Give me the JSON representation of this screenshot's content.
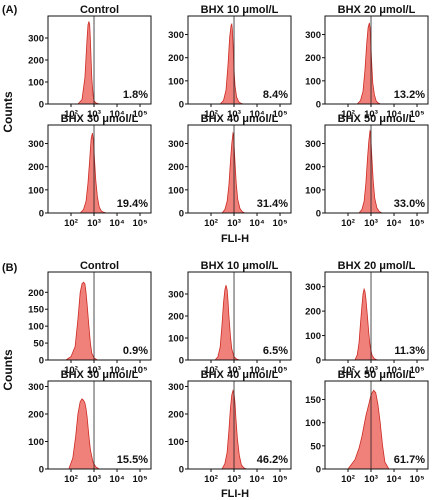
{
  "figure": {
    "label_a": "(A)",
    "label_b": "(B)",
    "ylabel": "Counts",
    "xlabel": "FLI-H",
    "colors": {
      "fill": "#f0807a",
      "stroke": "#cc2a24",
      "axis": "#111111",
      "gate": "#222222"
    }
  },
  "chart_data": [
    {
      "type": "area",
      "group": "A",
      "panel": 1,
      "title": "Control",
      "percent_label": "1.8%",
      "xlabel": "FLI-H",
      "ylabel": "Counts",
      "x_scale": "log",
      "xlim": [
        10,
        300000
      ],
      "ylim": [
        0,
        400
      ],
      "x_ticks": [
        100,
        1000,
        10000,
        100000
      ],
      "x_tick_labels": [
        "10²",
        "10³",
        "10⁴",
        "10⁵"
      ],
      "y_ticks": [
        0,
        100,
        200,
        300
      ],
      "gate": 1000,
      "x": [
        200,
        300,
        400,
        500,
        550,
        600,
        650,
        700,
        750,
        800,
        900,
        1000,
        1200,
        1500,
        2000
      ],
      "values": [
        0,
        20,
        120,
        300,
        360,
        375,
        360,
        290,
        200,
        120,
        45,
        15,
        5,
        2,
        0
      ]
    },
    {
      "type": "area",
      "group": "A",
      "panel": 2,
      "title": "BHX 10 μmol/L",
      "percent_label": "8.4%",
      "xlabel": "FLI-H",
      "ylabel": "Counts",
      "x_scale": "log",
      "xlim": [
        10,
        300000
      ],
      "ylim": [
        0,
        380
      ],
      "x_ticks": [
        100,
        1000,
        10000,
        100000
      ],
      "x_tick_labels": [
        "10²",
        "10³",
        "10⁴",
        "10⁵"
      ],
      "y_ticks": [
        0,
        100,
        200,
        300
      ],
      "gate": 1000,
      "x": [
        250,
        350,
        450,
        550,
        650,
        750,
        800,
        850,
        900,
        1000,
        1100,
        1300,
        1600,
        2000,
        2500
      ],
      "values": [
        0,
        15,
        60,
        170,
        290,
        340,
        345,
        320,
        260,
        150,
        80,
        30,
        10,
        3,
        0
      ]
    },
    {
      "type": "area",
      "group": "A",
      "panel": 3,
      "title": "BHX 20 μmol/L",
      "percent_label": "13.2%",
      "xlabel": "FLI-H",
      "ylabel": "Counts",
      "x_scale": "log",
      "xlim": [
        10,
        300000
      ],
      "ylim": [
        0,
        380
      ],
      "x_ticks": [
        100,
        1000,
        10000,
        100000
      ],
      "x_tick_labels": [
        "10²",
        "10³",
        "10⁴",
        "10⁵"
      ],
      "y_ticks": [
        0,
        100,
        200,
        300
      ],
      "gate": 1000,
      "x": [
        250,
        350,
        450,
        550,
        650,
        750,
        850,
        900,
        1000,
        1100,
        1200,
        1400,
        1700,
        2100,
        2700
      ],
      "values": [
        0,
        15,
        55,
        150,
        260,
        330,
        350,
        330,
        240,
        150,
        90,
        40,
        12,
        4,
        0
      ]
    },
    {
      "type": "area",
      "group": "A",
      "panel": 4,
      "title": "BHX 30 μmol/L",
      "percent_label": "19.4%",
      "xlabel": "FLI-H",
      "ylabel": "Counts",
      "x_scale": "log",
      "xlim": [
        10,
        300000
      ],
      "ylim": [
        0,
        380
      ],
      "x_ticks": [
        100,
        1000,
        10000,
        100000
      ],
      "x_tick_labels": [
        "10²",
        "10³",
        "10⁴",
        "10⁵"
      ],
      "y_ticks": [
        0,
        100,
        200,
        300
      ],
      "gate": 1000,
      "x": [
        250,
        350,
        450,
        550,
        650,
        750,
        850,
        950,
        1050,
        1200,
        1400,
        1700,
        2100,
        2700,
        3500
      ],
      "values": [
        0,
        15,
        50,
        130,
        230,
        320,
        345,
        310,
        230,
        140,
        70,
        25,
        8,
        3,
        0
      ]
    },
    {
      "type": "area",
      "group": "A",
      "panel": 5,
      "title": "BHX 40 μmol/L",
      "percent_label": "31.4%",
      "xlabel": "FLI-H",
      "ylabel": "Counts",
      "x_scale": "log",
      "xlim": [
        10,
        300000
      ],
      "ylim": [
        0,
        380
      ],
      "x_ticks": [
        100,
        1000,
        10000,
        100000
      ],
      "x_tick_labels": [
        "10²",
        "10³",
        "10⁴",
        "10⁵"
      ],
      "y_ticks": [
        0,
        100,
        200,
        300
      ],
      "gate": 1000,
      "x": [
        300,
        400,
        500,
        600,
        700,
        800,
        900,
        950,
        1000,
        1100,
        1250,
        1450,
        1800,
        2300,
        3000
      ],
      "values": [
        0,
        15,
        50,
        120,
        220,
        300,
        345,
        340,
        300,
        220,
        130,
        60,
        20,
        5,
        0
      ]
    },
    {
      "type": "area",
      "group": "A",
      "panel": 6,
      "title": "BHX 50 μmol/L",
      "percent_label": "33.0%",
      "xlabel": "FLI-H",
      "ylabel": "Counts",
      "x_scale": "log",
      "xlim": [
        10,
        300000
      ],
      "ylim": [
        0,
        380
      ],
      "x_ticks": [
        100,
        1000,
        10000,
        100000
      ],
      "x_tick_labels": [
        "10²",
        "10³",
        "10⁴",
        "10⁵"
      ],
      "y_ticks": [
        0,
        100,
        200,
        300
      ],
      "gate": 1000,
      "x": [
        300,
        400,
        500,
        600,
        700,
        800,
        900,
        950,
        1000,
        1100,
        1250,
        1450,
        1800,
        2300,
        3000
      ],
      "values": [
        0,
        15,
        50,
        130,
        230,
        310,
        355,
        350,
        310,
        230,
        140,
        65,
        22,
        6,
        0
      ]
    },
    {
      "type": "area",
      "group": "B",
      "panel": 1,
      "title": "Control",
      "percent_label": "0.9%",
      "xlabel": "FLI-H",
      "ylabel": "Counts",
      "x_scale": "log",
      "xlim": [
        10,
        300000
      ],
      "ylim": [
        0,
        260
      ],
      "x_ticks": [
        100,
        1000,
        10000,
        100000
      ],
      "x_tick_labels": [
        "10²",
        "10³",
        "10⁴",
        "10⁵"
      ],
      "y_ticks": [
        0,
        50,
        100,
        150,
        200
      ],
      "gate": 1000,
      "x": [
        60,
        100,
        150,
        200,
        250,
        300,
        350,
        400,
        450,
        500,
        600,
        700,
        800,
        1000,
        1400
      ],
      "values": [
        0,
        10,
        40,
        120,
        200,
        225,
        230,
        225,
        200,
        165,
        100,
        50,
        20,
        6,
        0
      ]
    },
    {
      "type": "area",
      "group": "B",
      "panel": 2,
      "title": "BHX 10 μmol/L",
      "percent_label": "6.5%",
      "xlabel": "FLI-H",
      "ylabel": "Counts",
      "x_scale": "log",
      "xlim": [
        10,
        300000
      ],
      "ylim": [
        0,
        400
      ],
      "x_ticks": [
        100,
        1000,
        10000,
        100000
      ],
      "x_tick_labels": [
        "10²",
        "10³",
        "10⁴",
        "10⁵"
      ],
      "y_ticks": [
        0,
        100,
        200,
        300
      ],
      "gate": 1000,
      "x": [
        150,
        200,
        250,
        300,
        350,
        400,
        450,
        500,
        550,
        600,
        700,
        800,
        1000,
        1300,
        1800
      ],
      "values": [
        0,
        15,
        60,
        160,
        260,
        320,
        340,
        320,
        270,
        200,
        110,
        50,
        15,
        4,
        0
      ]
    },
    {
      "type": "area",
      "group": "B",
      "panel": 3,
      "title": "BHX 20 μmol/L",
      "percent_label": "11.3%",
      "xlabel": "FLI-H",
      "ylabel": "Counts",
      "x_scale": "log",
      "xlim": [
        10,
        300000
      ],
      "ylim": [
        0,
        360
      ],
      "x_ticks": [
        100,
        1000,
        10000,
        100000
      ],
      "x_tick_labels": [
        "10²",
        "10³",
        "10⁴",
        "10⁵"
      ],
      "y_ticks": [
        0,
        100,
        200,
        300
      ],
      "gate": 1000,
      "x": [
        200,
        250,
        300,
        350,
        400,
        450,
        500,
        550,
        600,
        700,
        800,
        900,
        1100,
        1400,
        1900
      ],
      "values": [
        0,
        20,
        70,
        150,
        220,
        270,
        290,
        280,
        250,
        180,
        110,
        60,
        20,
        5,
        0
      ]
    },
    {
      "type": "area",
      "group": "B",
      "panel": 4,
      "title": "BHX 30 μmol/L",
      "percent_label": "15.5%",
      "xlabel": "FLI-H",
      "ylabel": "Counts",
      "x_scale": "log",
      "xlim": [
        10,
        300000
      ],
      "ylim": [
        0,
        320
      ],
      "x_ticks": [
        100,
        1000,
        10000,
        100000
      ],
      "x_tick_labels": [
        "10²",
        "10³",
        "10⁴",
        "10⁵"
      ],
      "y_ticks": [
        0,
        100,
        200,
        300
      ],
      "gate": 1000,
      "x": [
        80,
        120,
        160,
        200,
        250,
        300,
        350,
        400,
        450,
        500,
        600,
        700,
        900,
        1200,
        1700
      ],
      "values": [
        0,
        40,
        120,
        200,
        245,
        255,
        250,
        240,
        220,
        190,
        120,
        70,
        25,
        8,
        0
      ]
    },
    {
      "type": "area",
      "group": "B",
      "panel": 5,
      "title": "BHX 40 μmol/L",
      "percent_label": "46.2%",
      "xlabel": "FLI-H",
      "ylabel": "Counts",
      "x_scale": "log",
      "xlim": [
        10,
        300000
      ],
      "ylim": [
        0,
        320
      ],
      "x_ticks": [
        100,
        1000,
        10000,
        100000
      ],
      "x_tick_labels": [
        "10²",
        "10³",
        "10⁴",
        "10⁵"
      ],
      "y_ticks": [
        0,
        100,
        200,
        300
      ],
      "gate": 1000,
      "x": [
        300,
        400,
        500,
        600,
        700,
        800,
        900,
        1000,
        1100,
        1200,
        1400,
        1700,
        2100,
        2700,
        3500
      ],
      "values": [
        0,
        20,
        60,
        140,
        220,
        270,
        285,
        275,
        240,
        190,
        110,
        50,
        15,
        4,
        0
      ]
    },
    {
      "type": "area",
      "group": "B",
      "panel": 6,
      "title": "BHX 50 μmol/L",
      "percent_label": "61.7%",
      "xlabel": "FLI-H",
      "ylabel": "Counts",
      "x_scale": "log",
      "xlim": [
        10,
        300000
      ],
      "ylim": [
        0,
        190
      ],
      "x_ticks": [
        100,
        1000,
        10000,
        100000
      ],
      "x_tick_labels": [
        "10²",
        "10³",
        "10⁴",
        "10⁵"
      ],
      "y_ticks": [
        0,
        50,
        100,
        150
      ],
      "gate": 1000,
      "x": [
        100,
        200,
        300,
        400,
        500,
        600,
        800,
        1000,
        1300,
        1600,
        2000,
        2500,
        3200,
        4000,
        6000
      ],
      "values": [
        0,
        20,
        45,
        70,
        95,
        115,
        140,
        160,
        170,
        165,
        140,
        100,
        50,
        15,
        0
      ]
    }
  ]
}
